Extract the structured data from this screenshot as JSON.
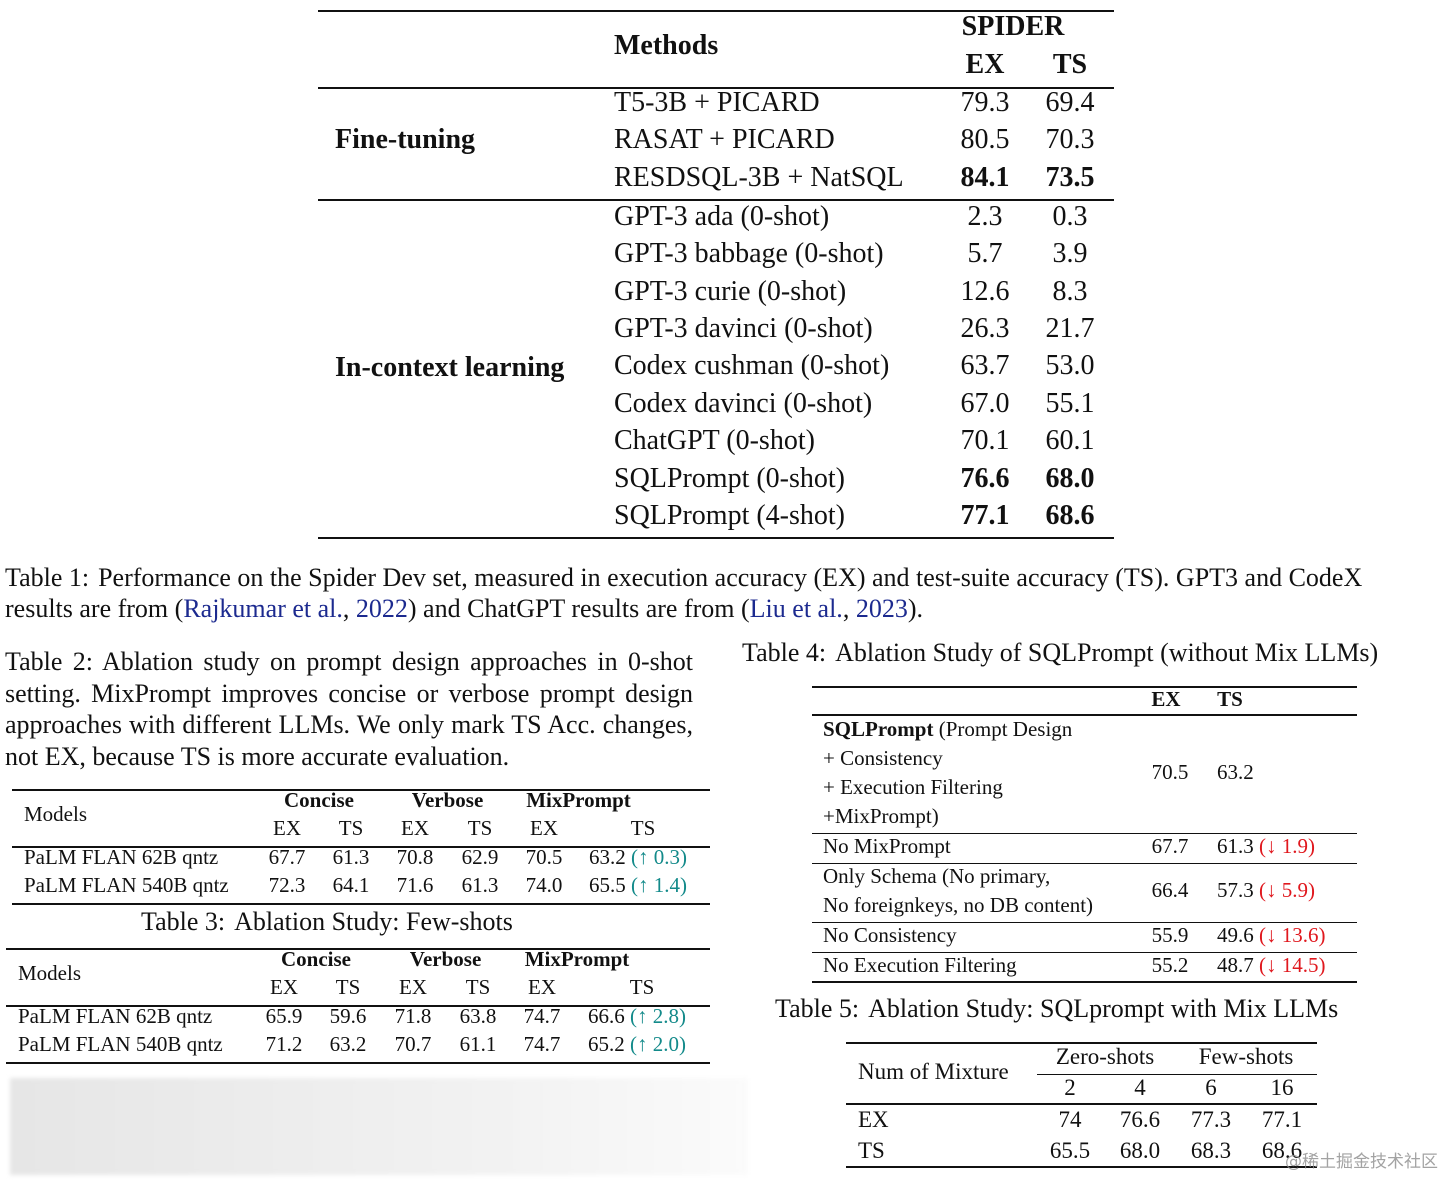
{
  "table1": {
    "header": {
      "methods": "Methods",
      "dataset": "SPIDER",
      "ex": "EX",
      "ts": "TS"
    },
    "groups": [
      {
        "label": "Fine-tuning",
        "rows": [
          {
            "method": "T5-3B + PICARD",
            "ex": "79.3",
            "ts": "69.4"
          },
          {
            "method": "RASAT + PICARD",
            "ex": "80.5",
            "ts": "70.3"
          },
          {
            "method": "RESDSQL-3B + NatSQL",
            "ex": "84.1",
            "ts": "73.5",
            "bold": true
          }
        ]
      },
      {
        "label": "In-context learning",
        "rows": [
          {
            "method": "GPT-3 ada (0-shot)",
            "ex": "2.3",
            "ts": "0.3"
          },
          {
            "method": "GPT-3 babbage (0-shot)",
            "ex": "5.7",
            "ts": "3.9"
          },
          {
            "method": "GPT-3 curie (0-shot)",
            "ex": "12.6",
            "ts": "8.3"
          },
          {
            "method": "GPT-3 davinci (0-shot)",
            "ex": "26.3",
            "ts": "21.7"
          },
          {
            "method": "Codex cushman (0-shot)",
            "ex": "63.7",
            "ts": "53.0"
          },
          {
            "method": "Codex davinci (0-shot)",
            "ex": "67.0",
            "ts": "55.1"
          },
          {
            "method": "ChatGPT (0-shot)",
            "ex": "70.1",
            "ts": "60.1"
          },
          {
            "method": "SQLPrompt (0-shot)",
            "ex": "76.6",
            "ts": "68.0",
            "bold": true
          },
          {
            "method": "SQLPrompt (4-shot)",
            "ex": "77.1",
            "ts": "68.6",
            "bold": true
          }
        ]
      }
    ]
  },
  "caption1": {
    "label": "Table 1:",
    "segments": [
      {
        "text": "Performance on the Spider Dev set, measured in execution accuracy (EX) and test-suite accuracy (TS). GPT3 and CodeX results are from ("
      },
      {
        "text": "Rajkumar et al.",
        "cite": true
      },
      {
        "text": ", "
      },
      {
        "text": "2022",
        "cite": true
      },
      {
        "text": ") and ChatGPT results are from ("
      },
      {
        "text": "Liu et al.",
        "cite": true
      },
      {
        "text": ", "
      },
      {
        "text": "2023",
        "cite": true
      },
      {
        "text": ")."
      }
    ]
  },
  "caption2": {
    "label": "Table 2:",
    "text": "Ablation study on prompt design approaches in 0-shot setting. MixPrompt improves concise or verbose prompt design approaches with different LLMs. We only mark TS Acc. changes, not EX, because TS is more accurate evaluation."
  },
  "table2": {
    "header": {
      "models": "Models",
      "groups": [
        "Concise",
        "Verbose",
        "MixPrompt"
      ],
      "sub": [
        "EX",
        "TS",
        "EX",
        "TS",
        "EX",
        "TS"
      ]
    },
    "rows": [
      {
        "model": "PaLM FLAN 62B qntz",
        "values": [
          "67.7",
          "61.3",
          "70.8",
          "62.9",
          "70.5",
          "63.2"
        ],
        "change": "(↑ 0.3)"
      },
      {
        "model": "PaLM FLAN 540B qntz",
        "values": [
          "72.3",
          "64.1",
          "71.6",
          "61.3",
          "74.0",
          "65.5"
        ],
        "change": "(↑ 1.4)"
      }
    ]
  },
  "caption3": {
    "label": "Table 3:",
    "text": "Ablation Study: Few-shots"
  },
  "table3": {
    "header": {
      "models": "Models",
      "groups": [
        "Concise",
        "Verbose",
        "MixPrompt"
      ],
      "sub": [
        "EX",
        "TS",
        "EX",
        "TS",
        "EX",
        "TS"
      ]
    },
    "rows": [
      {
        "model": "PaLM FLAN 62B qntz",
        "values": [
          "65.9",
          "59.6",
          "71.8",
          "63.8",
          "74.7",
          "66.6"
        ],
        "change": "(↑ 2.8)"
      },
      {
        "model": "PaLM FLAN 540B qntz",
        "values": [
          "71.2",
          "63.2",
          "70.7",
          "61.1",
          "74.7",
          "65.2"
        ],
        "change": "(↑ 2.0)"
      }
    ]
  },
  "caption4": {
    "label": "Table 4:",
    "text": "Ablation Study of SQLPrompt (without Mix LLMs)"
  },
  "table4": {
    "header": {
      "ex": "EX",
      "ts": "TS"
    },
    "rows": [
      {
        "lead": "SQLPrompt",
        "lines": [
          " (Prompt Design",
          "+ Consistency",
          "+ Execution Filtering",
          "+MixPrompt)"
        ],
        "ex": "70.5",
        "ts": "63.2"
      },
      {
        "lines": [
          "No MixPrompt"
        ],
        "ex": "67.7",
        "ts": "61.3",
        "change": "(↓ 1.9)"
      },
      {
        "lines": [
          "Only Schema (No primary,",
          "No foreignkeys, no DB content)"
        ],
        "ex": "66.4",
        "ts": "57.3",
        "change": "(↓ 5.9)"
      },
      {
        "lines": [
          "No Consistency"
        ],
        "ex": "55.9",
        "ts": "49.6",
        "change": "(↓ 13.6)"
      },
      {
        "lines": [
          "No Execution Filtering"
        ],
        "ex": "55.2",
        "ts": "48.7",
        "change": "(↓ 14.5)"
      }
    ]
  },
  "caption5": {
    "label": "Table 5:",
    "text": "Ablation Study: SQLprompt with Mix LLMs"
  },
  "table5": {
    "header": {
      "label": "Num of Mixture",
      "groups": [
        "Zero-shots",
        "Few-shots"
      ],
      "sub": [
        "2",
        "4",
        "6",
        "16"
      ]
    },
    "rows": [
      {
        "label": "EX",
        "values": [
          "74",
          "76.6",
          "77.3",
          "77.1"
        ]
      },
      {
        "label": "TS",
        "values": [
          "65.5",
          "68.0",
          "68.3",
          "68.6"
        ]
      }
    ]
  },
  "watermark": "@稀土掘金技术社区"
}
